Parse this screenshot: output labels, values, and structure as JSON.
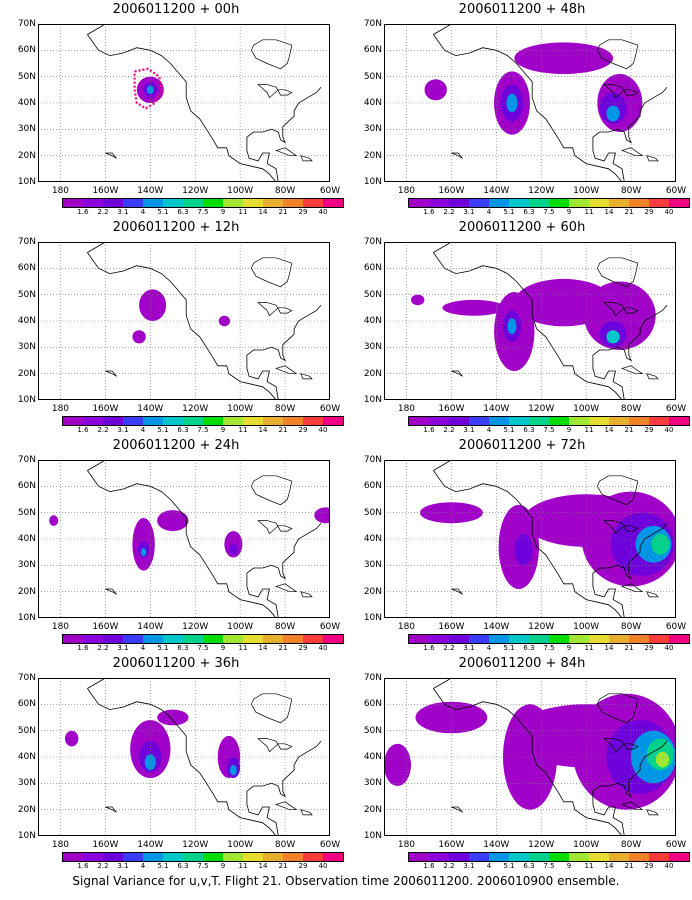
{
  "footer": "Signal Variance for u,v,T. Flight 21. Observation time 2006011200. 2006010900 ensemble.",
  "lat_labels": [
    "70N",
    "60N",
    "50N",
    "40N",
    "30N",
    "20N",
    "10N"
  ],
  "lon_labels": [
    "180",
    "160W",
    "140W",
    "120W",
    "100W",
    "80W",
    "60W"
  ],
  "colorbar": {
    "labels": [
      "1.6",
      "2.2",
      "3.1",
      "4",
      "5.1",
      "6.3",
      "7.5",
      "9",
      "11",
      "14",
      "21",
      "29",
      "40"
    ],
    "colors": [
      "#a000c8",
      "#8c00dc",
      "#6e00dc",
      "#3c3cff",
      "#0096e6",
      "#00c8c8",
      "#00d28c",
      "#00dc00",
      "#a0e632",
      "#e6dc32",
      "#e6af2d",
      "#f08228",
      "#fa3c3c",
      "#f00082"
    ]
  },
  "panels": [
    {
      "title": "2006011200 + 00h",
      "col": 0,
      "row": 0
    },
    {
      "title": "2006011200 + 48h",
      "col": 1,
      "row": 0
    },
    {
      "title": "2006011200 + 12h",
      "col": 0,
      "row": 1
    },
    {
      "title": "2006011200 + 60h",
      "col": 1,
      "row": 1
    },
    {
      "title": "2006011200 + 24h",
      "col": 0,
      "row": 2
    },
    {
      "title": "2006011200 + 72h",
      "col": 1,
      "row": 2
    },
    {
      "title": "2006011200 + 36h",
      "col": 0,
      "row": 3
    },
    {
      "title": "2006011200 + 84h",
      "col": 1,
      "row": 3
    }
  ]
}
